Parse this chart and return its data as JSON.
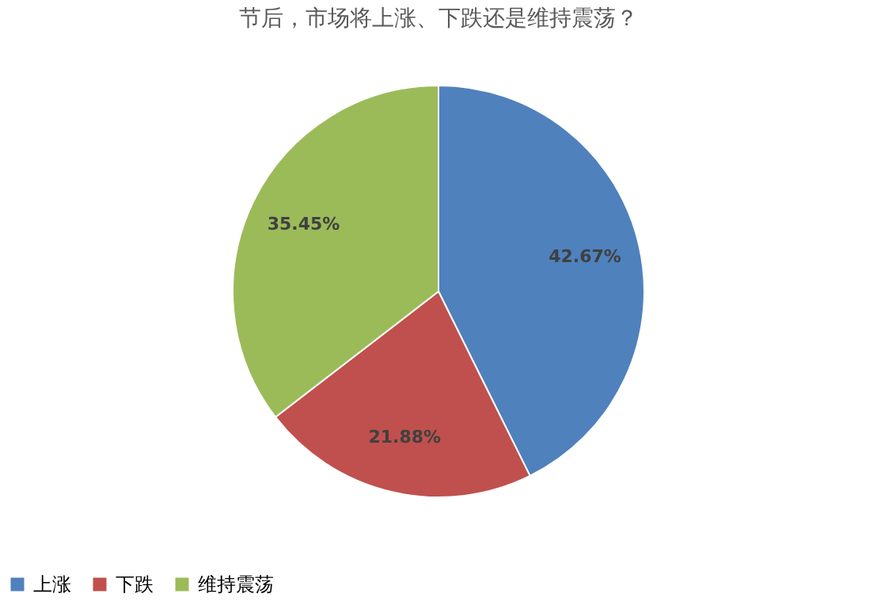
{
  "chart_data": {
    "type": "pie",
    "title": "节后，市场将上涨、下跌还是维持震荡？",
    "categories": [
      "上涨",
      "下跌",
      "维持震荡"
    ],
    "values": [
      42.67,
      21.88,
      35.45
    ],
    "colors": [
      "#4f81bd",
      "#c0504d",
      "#9bbb59"
    ],
    "value_labels": [
      "42.67%",
      "21.88%",
      "35.45%"
    ],
    "legend": "bottom"
  }
}
